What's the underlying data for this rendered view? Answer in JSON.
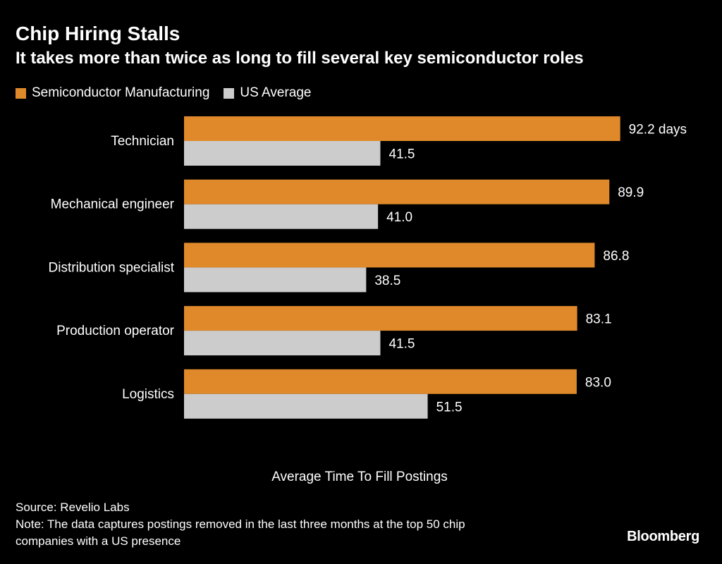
{
  "title": "Chip Hiring Stalls",
  "subtitle": "It takes more than twice as long to fill several key semiconductor roles",
  "legend": [
    {
      "label": "Semiconductor Manufacturing",
      "color": "#e0892a"
    },
    {
      "label": "US Average",
      "color": "#cccccc"
    }
  ],
  "footer": {
    "source": "Source: Revelio Labs",
    "note_line1": "Note: The data captures postings removed in the last three months at the top 50 chip",
    "note_line2": "companies with a US presence",
    "logo": "Bloomberg"
  },
  "chart_data": {
    "type": "bar",
    "orientation": "horizontal",
    "title": "Chip Hiring Stalls",
    "subtitle": "It takes more than twice as long to fill several key semiconductor roles",
    "xlabel": "Average Time To Fill Postings",
    "ylabel": "",
    "xlim": [
      0,
      100
    ],
    "grid": false,
    "legend_position": "top-left",
    "categories": [
      "Technician",
      "Mechanical engineer",
      "Distribution specialist",
      "Production operator",
      "Logistics"
    ],
    "series": [
      {
        "name": "Semiconductor Manufacturing",
        "color": "#e0892a",
        "values": [
          92.2,
          89.9,
          86.8,
          83.1,
          83.0
        ],
        "labels": [
          "92.2 days",
          "89.9",
          "86.8",
          "83.1",
          "83.0"
        ]
      },
      {
        "name": "US Average",
        "color": "#cccccc",
        "values": [
          41.5,
          41.0,
          38.5,
          41.5,
          51.5
        ],
        "labels": [
          "41.5",
          "41.0",
          "38.5",
          "41.5",
          "51.5"
        ]
      }
    ]
  }
}
